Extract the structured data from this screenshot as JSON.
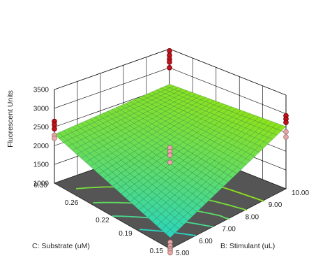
{
  "chart_data": {
    "type": "surface",
    "zlabel": "Fluorescent Units",
    "xlabel": "C: Substrate (uM)",
    "ylabel": "B: Stimulant (uL)",
    "zlim": [
      1000,
      3500
    ],
    "xlim": [
      0.15,
      0.3
    ],
    "ylim": [
      5.0,
      10.0
    ],
    "z_ticks": [
      "1000",
      "1500",
      "2000",
      "2500",
      "3000",
      "3500"
    ],
    "x_ticks": [
      "0.30",
      "0.26",
      "0.22",
      "0.19",
      "0.15"
    ],
    "y_ticks": [
      "5.00",
      "6.00",
      "7.00",
      "8.00",
      "9.00",
      "10.00"
    ],
    "grid": true,
    "surface_color_low": "#2ad4c0",
    "surface_color_high": "#8fe21a",
    "floor_color": "#555555",
    "point_color_above": "#c0121a",
    "point_color_below": "#e8a8a8",
    "surface_corners": [
      {
        "substrate": 0.3,
        "stimulant": 5.0,
        "z": 2300
      },
      {
        "substrate": 0.3,
        "stimulant": 10.0,
        "z": 2560
      },
      {
        "substrate": 0.15,
        "stimulant": 10.0,
        "z": 2660
      },
      {
        "substrate": 0.15,
        "stimulant": 5.0,
        "z": 1300
      }
    ],
    "design_points": [
      {
        "substrate": 0.3,
        "stimulant": 5.0,
        "z": [
          2650,
          2560,
          2450,
          2280,
          2200
        ]
      },
      {
        "substrate": 0.3,
        "stimulant": 10.0,
        "z": [
          3450,
          3330,
          3230,
          3150,
          3000
        ]
      },
      {
        "substrate": 0.15,
        "stimulant": 10.0,
        "z": [
          2950,
          2860,
          2770,
          2520,
          2380
        ]
      },
      {
        "substrate": 0.225,
        "stimulant": 7.5,
        "z": [
          2150,
          2050,
          1950,
          1760
        ]
      },
      {
        "substrate": 0.15,
        "stimulant": 5.0,
        "z": [
          1180,
          1080,
          1010,
          960,
          900
        ]
      }
    ]
  }
}
